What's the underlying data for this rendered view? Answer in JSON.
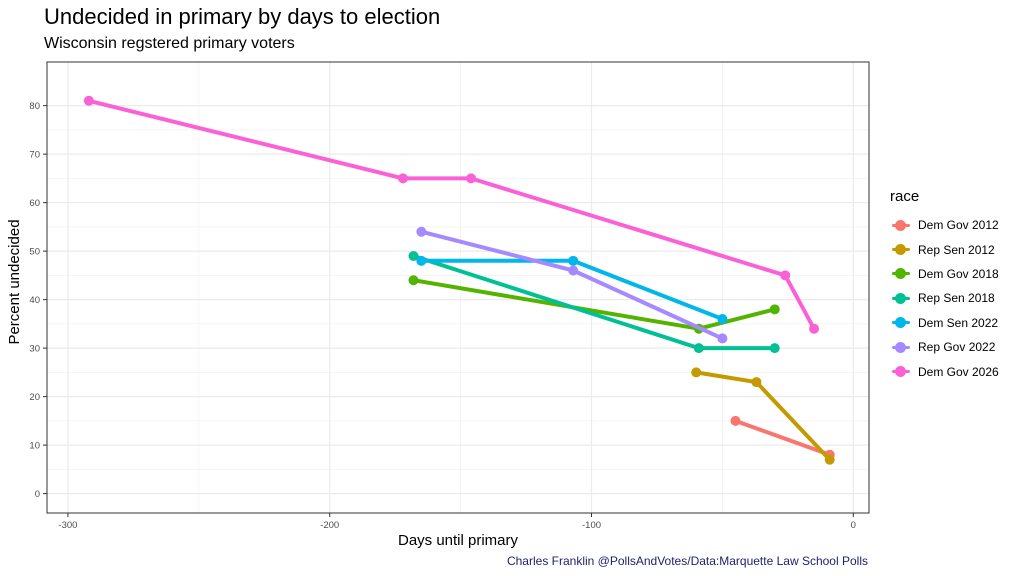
{
  "chart_data": {
    "type": "line",
    "title": "Undecided in primary by days to election",
    "subtitle": "Wisconsin regstered primary voters",
    "xlabel": "Days until primary",
    "ylabel": "Percent undecided",
    "xlim": [
      -308,
      6
    ],
    "ylim": [
      -4,
      89
    ],
    "x_ticks": [
      -300,
      -200,
      -100,
      0
    ],
    "x_tick_labels": [
      "-300",
      "-200",
      "-100",
      "0"
    ],
    "y_ticks": [
      0,
      10,
      20,
      30,
      40,
      50,
      60,
      70,
      80
    ],
    "y_tick_labels": [
      "0",
      "10",
      "20",
      "30",
      "40",
      "50",
      "60",
      "70",
      "80"
    ],
    "grid": true,
    "legend_title": "race",
    "legend_position": "right",
    "series": [
      {
        "name": "Dem Gov 2012",
        "color": "#F8766D",
        "points": [
          [
            -45,
            15
          ],
          [
            -9,
            8
          ]
        ]
      },
      {
        "name": "Rep Sen 2012",
        "color": "#C49A00",
        "points": [
          [
            -60,
            25
          ],
          [
            -37,
            23
          ],
          [
            -9,
            7
          ]
        ]
      },
      {
        "name": "Dem Gov 2018",
        "color": "#53B400",
        "points": [
          [
            -168,
            44
          ],
          [
            -59,
            34
          ],
          [
            -30,
            38
          ]
        ]
      },
      {
        "name": "Rep Sen 2018",
        "color": "#00C094",
        "points": [
          [
            -168,
            49
          ],
          [
            -59,
            30
          ],
          [
            -30,
            30
          ]
        ]
      },
      {
        "name": "Dem Sen 2022",
        "color": "#00B6EB",
        "points": [
          [
            -165,
            48
          ],
          [
            -107,
            48
          ],
          [
            -50,
            36
          ]
        ]
      },
      {
        "name": "Rep Gov 2022",
        "color": "#A58AFF",
        "points": [
          [
            -165,
            54
          ],
          [
            -107,
            46
          ],
          [
            -50,
            32
          ]
        ]
      },
      {
        "name": "Dem Gov 2026",
        "color": "#FB61D7",
        "points": [
          [
            -292,
            81
          ],
          [
            -172,
            65
          ],
          [
            -146,
            65
          ],
          [
            -26,
            45
          ],
          [
            -15,
            34
          ]
        ]
      }
    ]
  },
  "caption": "Charles Franklin @PollsAndVotes/Data:Marquette Law School Polls"
}
